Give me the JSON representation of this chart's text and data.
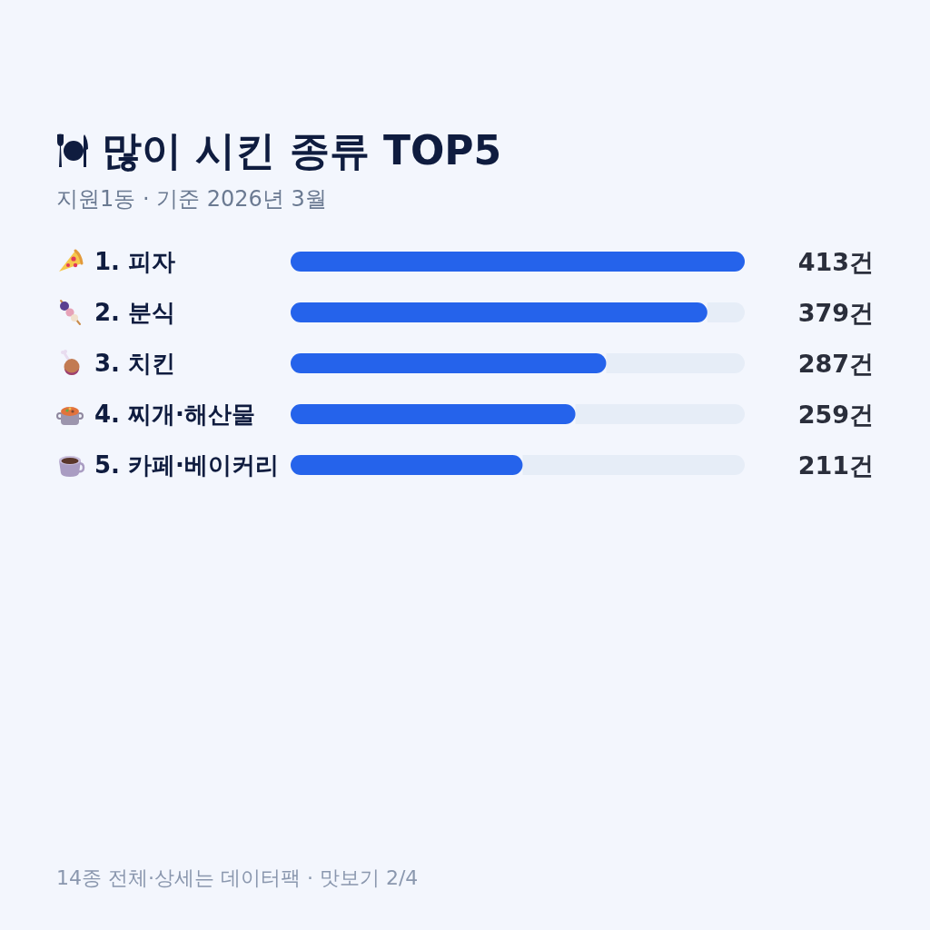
{
  "chart_data": {
    "type": "bar",
    "orientation": "horizontal",
    "title": "많이 시킨 종류 TOP5",
    "subtitle": "지원1동 · 기준 2026년 3월",
    "categories": [
      "1. 피자",
      "2. 분식",
      "3. 치킨",
      "4. 찌개·해산물",
      "5. 카페·베이커리"
    ],
    "values": [
      413,
      379,
      287,
      259,
      211
    ],
    "color": "#2563eb",
    "value_labels": [
      "413건",
      "379건",
      "287건",
      "259건",
      "211건"
    ],
    "tick_labels": "y",
    "annotations": [
      "14종 전체·상세는 데이터팩 · 맛보기 2/4"
    ]
  }
}
